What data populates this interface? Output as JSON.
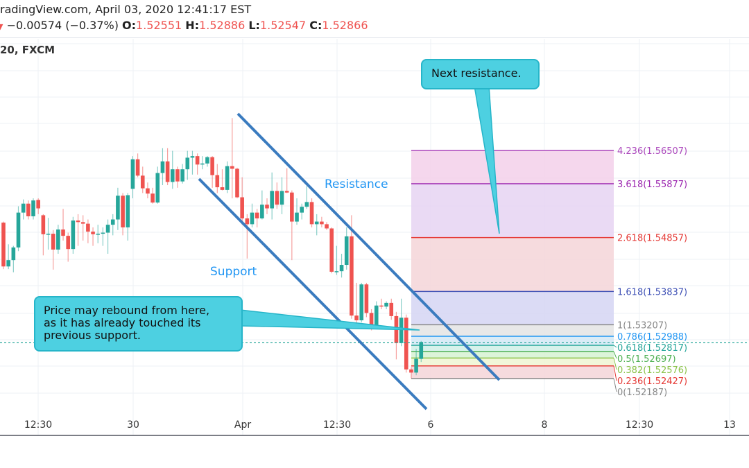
{
  "header": {
    "line1": "radingView.com, April 03, 2020 12:41:17 EST",
    "change": "−0.00574 (−0.37%)",
    "open_label": "O:",
    "open": "1.52551",
    "high_label": "H:",
    "high": "1.52886",
    "low_label": "L:",
    "low": "1.52547",
    "close_label": "C:",
    "close": "1.52866",
    "symbol": "20, FXCM",
    "change_icon": "triangle-down-icon"
  },
  "colors": {
    "up": "#26a69a",
    "down": "#ef5350",
    "channel": "#3a7bbf",
    "label": "#2196f3",
    "callout": "#4dd0e1"
  },
  "annotations": {
    "resistance": "Resistance",
    "support": "Support",
    "callout_next": "Next resistance.",
    "callout_rebound": [
      "Price may rebound from here,",
      "as it has already touched its",
      "previous support."
    ]
  },
  "chart_data": {
    "type": "candlestick",
    "x_ticks": [
      "12:30",
      "30",
      "Apr",
      "12:30",
      "6",
      "8",
      "12:30",
      "13"
    ],
    "last_price": 1.52866,
    "grid": true,
    "candles": [
      [
        1.5514,
        1.5516,
        1.5426,
        1.5431
      ],
      [
        1.5431,
        1.5473,
        1.5426,
        1.5443
      ],
      [
        1.5443,
        1.547,
        1.542,
        1.5467
      ],
      [
        1.5467,
        1.5545,
        1.546,
        1.5533
      ],
      [
        1.5533,
        1.5558,
        1.552,
        1.555
      ],
      [
        1.555,
        1.5556,
        1.552,
        1.5526
      ],
      [
        1.5526,
        1.556,
        1.552,
        1.5556
      ],
      [
        1.5557,
        1.556,
        1.553,
        1.5541
      ],
      [
        1.5528,
        1.553,
        1.5452,
        1.5492
      ],
      [
        1.5492,
        1.5523,
        1.5463,
        1.5493
      ],
      [
        1.5493,
        1.55,
        1.5425,
        1.5463
      ],
      [
        1.5463,
        1.551,
        1.5455,
        1.5501
      ],
      [
        1.5501,
        1.554,
        1.548,
        1.5489
      ],
      [
        1.5489,
        1.5495,
        1.544,
        1.5464
      ],
      [
        1.5464,
        1.5525,
        1.5455,
        1.5518
      ],
      [
        1.5518,
        1.553,
        1.547,
        1.5515
      ],
      [
        1.5515,
        1.5528,
        1.548,
        1.5512
      ],
      [
        1.5512,
        1.552,
        1.5475,
        1.5497
      ],
      [
        1.5497,
        1.5505,
        1.547,
        1.5492
      ],
      [
        1.5492,
        1.551,
        1.5475,
        1.5493
      ],
      [
        1.5493,
        1.5505,
        1.547,
        1.5495
      ],
      [
        1.5495,
        1.552,
        1.5455,
        1.551
      ],
      [
        1.551,
        1.553,
        1.549,
        1.552
      ],
      [
        1.552,
        1.558,
        1.55,
        1.5565
      ],
      [
        1.5565,
        1.557,
        1.549,
        1.5505
      ],
      [
        1.5505,
        1.557,
        1.548,
        1.5566
      ],
      [
        1.5578,
        1.564,
        1.556,
        1.5634
      ],
      [
        1.5634,
        1.5645,
        1.56,
        1.5603
      ],
      [
        1.5603,
        1.562,
        1.557,
        1.5579
      ],
      [
        1.5579,
        1.559,
        1.556,
        1.5569
      ],
      [
        1.5569,
        1.558,
        1.555,
        1.5552
      ],
      [
        1.5552,
        1.562,
        1.555,
        1.5608
      ],
      [
        1.5608,
        1.5655,
        1.5585,
        1.563
      ],
      [
        1.563,
        1.5655,
        1.5585,
        1.5591
      ],
      [
        1.5591,
        1.565,
        1.5578,
        1.5615
      ],
      [
        1.5615,
        1.562,
        1.558,
        1.5592
      ],
      [
        1.5592,
        1.5625,
        1.5588,
        1.5615
      ],
      [
        1.5615,
        1.565,
        1.5595,
        1.5637
      ],
      [
        1.5637,
        1.565,
        1.5605,
        1.564
      ],
      [
        1.564,
        1.5645,
        1.5605,
        1.5624
      ],
      [
        1.5624,
        1.564,
        1.5615,
        1.5626
      ],
      [
        1.5626,
        1.564,
        1.562,
        1.5638
      ],
      [
        1.5638,
        1.564,
        1.558,
        1.5604
      ],
      [
        1.5604,
        1.5625,
        1.557,
        1.5581
      ],
      [
        1.5581,
        1.5615,
        1.5575,
        1.5576
      ],
      [
        1.5576,
        1.563,
        1.557,
        1.5621
      ],
      [
        1.5621,
        1.5712,
        1.556,
        1.5616
      ],
      [
        1.5616,
        1.5618,
        1.556,
        1.5562
      ],
      [
        1.5562,
        1.56,
        1.551,
        1.5522
      ],
      [
        1.5522,
        1.553,
        1.5446,
        1.5511
      ],
      [
        1.5511,
        1.555,
        1.5505,
        1.5533
      ],
      [
        1.5533,
        1.554,
        1.5505,
        1.5522
      ],
      [
        1.5522,
        1.5575,
        1.552,
        1.5548
      ],
      [
        1.5548,
        1.556,
        1.553,
        1.5541
      ],
      [
        1.5541,
        1.5609,
        1.552,
        1.5574
      ],
      [
        1.5574,
        1.559,
        1.554,
        1.5548
      ],
      [
        1.5548,
        1.56,
        1.553,
        1.5574
      ],
      [
        1.5574,
        1.5617,
        1.557,
        1.5571
      ],
      [
        1.5571,
        1.5575,
        1.5443,
        1.5516
      ],
      [
        1.5516,
        1.556,
        1.551,
        1.5533
      ],
      [
        1.5533,
        1.555,
        1.552,
        1.5544
      ],
      [
        1.5544,
        1.5583,
        1.554,
        1.5553
      ],
      [
        1.5553,
        1.556,
        1.5505,
        1.5511
      ],
      [
        1.5511,
        1.553,
        1.549,
        1.5516
      ],
      [
        1.5516,
        1.5525,
        1.5505,
        1.5511
      ],
      [
        1.5511,
        1.5515,
        1.55,
        1.5503
      ],
      [
        1.5503,
        1.5505,
        1.5418,
        1.5421
      ],
      [
        1.5421,
        1.547,
        1.5415,
        1.5422
      ],
      [
        1.5422,
        1.5455,
        1.541,
        1.5434
      ],
      [
        1.5434,
        1.5505,
        1.5425,
        1.5488
      ],
      [
        1.5488,
        1.5528,
        1.5332,
        1.5338
      ],
      [
        1.5338,
        1.54,
        1.532,
        1.5329
      ],
      [
        1.5329,
        1.54,
        1.5325,
        1.5397
      ],
      [
        1.5397,
        1.54,
        1.5335,
        1.5343
      ],
      [
        1.5343,
        1.535,
        1.531,
        1.5317
      ],
      [
        1.5317,
        1.5365,
        1.5315,
        1.5357
      ],
      [
        1.5357,
        1.537,
        1.535,
        1.5355
      ],
      [
        1.5355,
        1.5365,
        1.535,
        1.5362
      ],
      [
        1.5362,
        1.537,
        1.533,
        1.5337
      ],
      [
        1.5337,
        1.5345,
        1.5255,
        1.5286
      ],
      [
        1.5286,
        1.537,
        1.528,
        1.5334
      ],
      [
        1.5334,
        1.534,
        1.523,
        1.5236
      ],
      [
        1.5236,
        1.524,
        1.5219,
        1.523
      ],
      [
        1.523,
        1.5275,
        1.5225,
        1.5256
      ],
      [
        1.5256,
        1.529,
        1.525,
        1.5288
      ]
    ],
    "fibonacci": [
      {
        "label": "4.236(1.56507)",
        "price": 1.56507,
        "color": "#ab47bc",
        "fill": "#f3d0ea"
      },
      {
        "label": "3.618(1.55877)",
        "price": 1.55877,
        "color": "#9c27b0",
        "fill": "#e6d3f2"
      },
      {
        "label": "2.618(1.54857)",
        "price": 1.54857,
        "color": "#e53935",
        "fill": "#f5d5d8"
      },
      {
        "label": "1.618(1.53837)",
        "price": 1.53837,
        "color": "#3f51b5",
        "fill": "#d5d5f3"
      },
      {
        "label": "1(1.53207)",
        "price": 1.53207,
        "color": "#888888",
        "fill": "#e4e4e4"
      },
      {
        "label": "0.786(1.52988)",
        "price": 1.52988,
        "color": "#2196f3",
        "fill": "#d3e9f6"
      },
      {
        "label": "0.618(1.52817)",
        "price": 1.52817,
        "color": "#26a69a",
        "fill": "#d0f0e8"
      },
      {
        "label": "0.5(1.52697)",
        "price": 1.52697,
        "color": "#4caf50",
        "fill": "#d6f2d2"
      },
      {
        "label": "0.382(1.52576)",
        "price": 1.52576,
        "color": "#8bc34a",
        "fill": "#eef4d2"
      },
      {
        "label": "0.236(1.52427)",
        "price": 1.52427,
        "color": "#e53935",
        "fill": "#f5d5d8"
      },
      {
        "label": "0(1.52187)",
        "price": 1.52187,
        "color": "#888888",
        "fill": ""
      }
    ]
  }
}
